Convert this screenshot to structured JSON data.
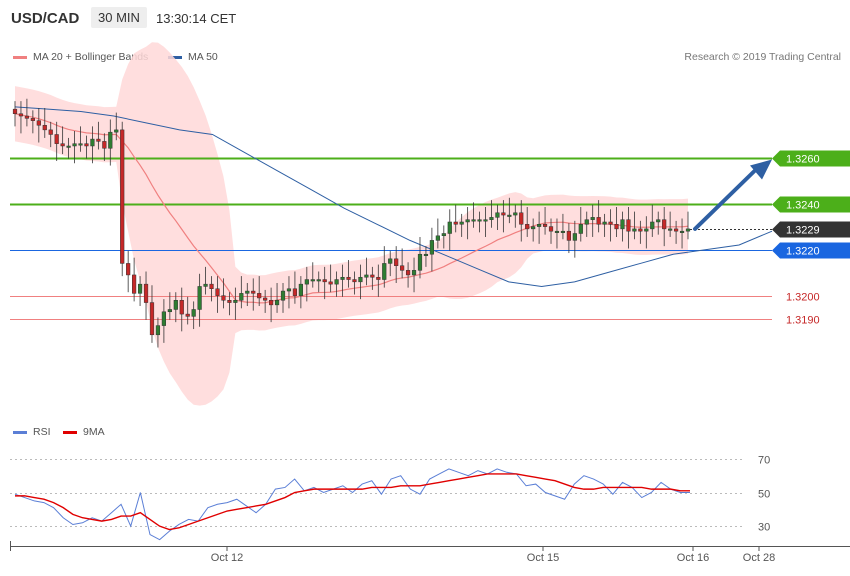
{
  "header": {
    "symbol": "USD/CAD",
    "timeframe": "30 MIN",
    "clock": "13:30:14 CET"
  },
  "legend_main": [
    {
      "label": "MA 20 + Bollinger Bands",
      "color": "#f08080"
    },
    {
      "label": "MA 50",
      "color": "#2e5fa3"
    }
  ],
  "legend_rsi": [
    {
      "label": "RSI",
      "color": "#5b7fd6"
    },
    {
      "label": "9MA",
      "color": "#e00000"
    }
  ],
  "copyright": "Research © 2019 Trading Central",
  "colors": {
    "up": "#2e7d32",
    "down": "#c62828",
    "band": "#ffd8d8",
    "target": "#4caf1a",
    "current": "#333333",
    "blue_level": "#1a66e0",
    "support": "#f08080",
    "arrow": "#2e5fa3"
  },
  "chart_data": [
    {
      "type": "candlestick",
      "title": "USD/CAD",
      "timeframe": "30 MIN",
      "ylim": [
        1.3146,
        1.3298
      ],
      "price_levels": [
        {
          "label": "1.3260",
          "value": 1.326,
          "kind": "target"
        },
        {
          "label": "1.3240",
          "value": 1.324,
          "kind": "target"
        },
        {
          "label": "1.3229",
          "value": 1.3229,
          "kind": "current"
        },
        {
          "label": "1.3220",
          "value": 1.322,
          "kind": "pivot"
        },
        {
          "label": "1.3200",
          "value": 1.32,
          "kind": "support"
        },
        {
          "label": "1.3190",
          "value": 1.319,
          "kind": "support"
        }
      ],
      "x_ticks": [
        "Oct 12",
        "Oct 15",
        "Oct 16",
        "Oct 28"
      ],
      "forecast": {
        "from": 1.3229,
        "to": 1.326,
        "direction": "up"
      },
      "close_series": [
        1.3279,
        1.3278,
        1.3277,
        1.3276,
        1.3274,
        1.3272,
        1.327,
        1.3266,
        1.3265,
        1.3265,
        1.3266,
        1.3266,
        1.3265,
        1.3268,
        1.3267,
        1.3264,
        1.3271,
        1.3272,
        1.3214,
        1.3209,
        1.3201,
        1.3205,
        1.3197,
        1.3183,
        1.3187,
        1.3193,
        1.3194,
        1.3198,
        1.3192,
        1.3191,
        1.3194,
        1.3204,
        1.3205,
        1.3203,
        1.32,
        1.3198,
        1.3197,
        1.3198,
        1.3201,
        1.3202,
        1.3201,
        1.3199,
        1.3198,
        1.3196,
        1.3198,
        1.3202,
        1.3203,
        1.32,
        1.3205,
        1.3207,
        1.3207,
        1.3207,
        1.3206,
        1.3205,
        1.3207,
        1.3208,
        1.3207,
        1.3206,
        1.3208,
        1.3209,
        1.3208,
        1.3207,
        1.3214,
        1.3216,
        1.3213,
        1.3211,
        1.3209,
        1.3211,
        1.3218,
        1.3218,
        1.3224,
        1.3226,
        1.3227,
        1.3232,
        1.3231,
        1.3232,
        1.3233,
        1.3233,
        1.3233,
        1.3233,
        1.3234,
        1.3236,
        1.3235,
        1.3235,
        1.3236,
        1.3231,
        1.3229,
        1.323,
        1.3231,
        1.323,
        1.3228,
        1.3228,
        1.3228,
        1.3224,
        1.3227,
        1.3231,
        1.3233,
        1.3234,
        1.3231,
        1.3232,
        1.3231,
        1.3229,
        1.3233,
        1.3228,
        1.3229,
        1.3228,
        1.3229,
        1.3232,
        1.3233,
        1.3229,
        1.3229,
        1.3228,
        1.3228,
        1.3229
      ],
      "ma50_series": [
        1.3282,
        1.3281,
        1.328,
        1.3278,
        1.3275,
        1.3272,
        1.327,
        1.3262,
        1.3254,
        1.3246,
        1.3238,
        1.3231,
        1.3224,
        1.3218,
        1.3212,
        1.3206,
        1.3204,
        1.3206,
        1.321,
        1.3214,
        1.3218,
        1.322,
        1.3222,
        1.3228
      ],
      "bollinger": {
        "upper_max": 1.3293,
        "lower_min": 1.3166
      }
    },
    {
      "type": "line",
      "title": "RSI",
      "ylim": [
        20,
        80
      ],
      "y_ticks": [
        30,
        50,
        70
      ],
      "series": [
        {
          "name": "RSI",
          "values": [
            49,
            47,
            45,
            44,
            41,
            35,
            31,
            32,
            35,
            33,
            38,
            43,
            30,
            50,
            25,
            22,
            27,
            31,
            34,
            33,
            41,
            43,
            44,
            46,
            42,
            38,
            43,
            52,
            53,
            58,
            51,
            53,
            50,
            52,
            54,
            50,
            55,
            57,
            49,
            58,
            60,
            52,
            49,
            58,
            61,
            64,
            62,
            60,
            63,
            61,
            64,
            62,
            61,
            54,
            55,
            50,
            48,
            46,
            55,
            60,
            58,
            55,
            49,
            56,
            53,
            47,
            50,
            56,
            52,
            50,
            50
          ]
        },
        {
          "name": "9MA",
          "values": [
            48,
            48,
            47,
            46,
            44,
            41,
            37,
            35,
            34,
            33,
            34,
            36,
            36,
            38,
            34,
            30,
            28,
            29,
            31,
            33,
            35,
            37,
            39,
            40,
            41,
            42,
            43,
            45,
            47,
            50,
            51,
            52,
            52,
            52,
            52,
            52,
            52,
            53,
            53,
            53,
            54,
            54,
            54,
            55,
            56,
            57,
            58,
            59,
            60,
            61,
            61,
            61,
            61,
            60,
            59,
            58,
            57,
            55,
            53,
            52,
            52,
            53,
            53,
            53,
            53,
            53,
            52,
            52,
            52,
            51,
            51
          ]
        }
      ]
    }
  ]
}
